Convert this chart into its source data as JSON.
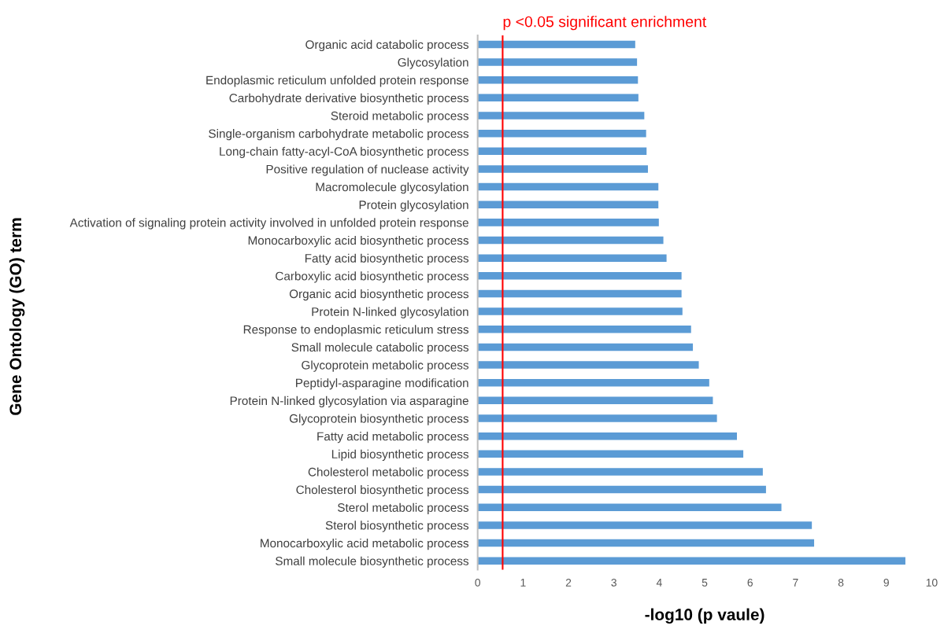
{
  "chart_data": {
    "type": "bar",
    "orientation": "horizontal",
    "xlabel": "-log10 (p vaule)",
    "ylabel": "Gene Ontology (GO) term",
    "categories": [
      "Organic acid catabolic process",
      "Glycosylation",
      "Endoplasmic reticulum unfolded protein response",
      "Carbohydrate derivative biosynthetic process",
      "Steroid metabolic process",
      "Single-organism carbohydrate metabolic process",
      "Long-chain fatty-acyl-CoA biosynthetic process",
      "Positive regulation of nuclease activity",
      "Macromolecule glycosylation",
      "Protein glycosylation",
      "Activation of signaling protein activity involved in unfolded protein response",
      "Monocarboxylic acid biosynthetic process",
      "Fatty acid biosynthetic process",
      "Carboxylic acid biosynthetic process",
      "Organic acid biosynthetic process",
      "Protein N-linked glycosylation",
      "Response to endoplasmic reticulum stress",
      "Small molecule catabolic process",
      "Glycoprotein metabolic process",
      "Peptidyl-asparagine modification",
      "Protein N-linked glycosylation via asparagine",
      "Glycoprotein biosynthetic process",
      "Fatty acid metabolic process",
      "Lipid biosynthetic process",
      "Cholesterol metabolic process",
      "Cholesterol biosynthetic process",
      "Sterol metabolic process",
      "Sterol biosynthetic process",
      "Monocarboxylic acid metabolic process",
      "Small molecule biosynthetic process"
    ],
    "values": [
      3.47,
      3.51,
      3.53,
      3.54,
      3.67,
      3.71,
      3.72,
      3.75,
      3.98,
      3.98,
      3.99,
      4.09,
      4.16,
      4.49,
      4.49,
      4.51,
      4.7,
      4.74,
      4.87,
      5.1,
      5.18,
      5.27,
      5.71,
      5.85,
      6.28,
      6.35,
      6.69,
      7.36,
      7.41,
      9.42
    ],
    "color": "#5b9bd5",
    "xlim": [
      0,
      10
    ],
    "xticks": [
      0,
      1,
      2,
      3,
      4,
      5,
      6,
      7,
      8,
      9,
      10
    ],
    "ref_lines": [
      {
        "axis": "x",
        "value": 0.55,
        "label": "p <0.05 significant enrichment",
        "color": "#ff0000"
      }
    ],
    "grid": false,
    "legend": false
  }
}
